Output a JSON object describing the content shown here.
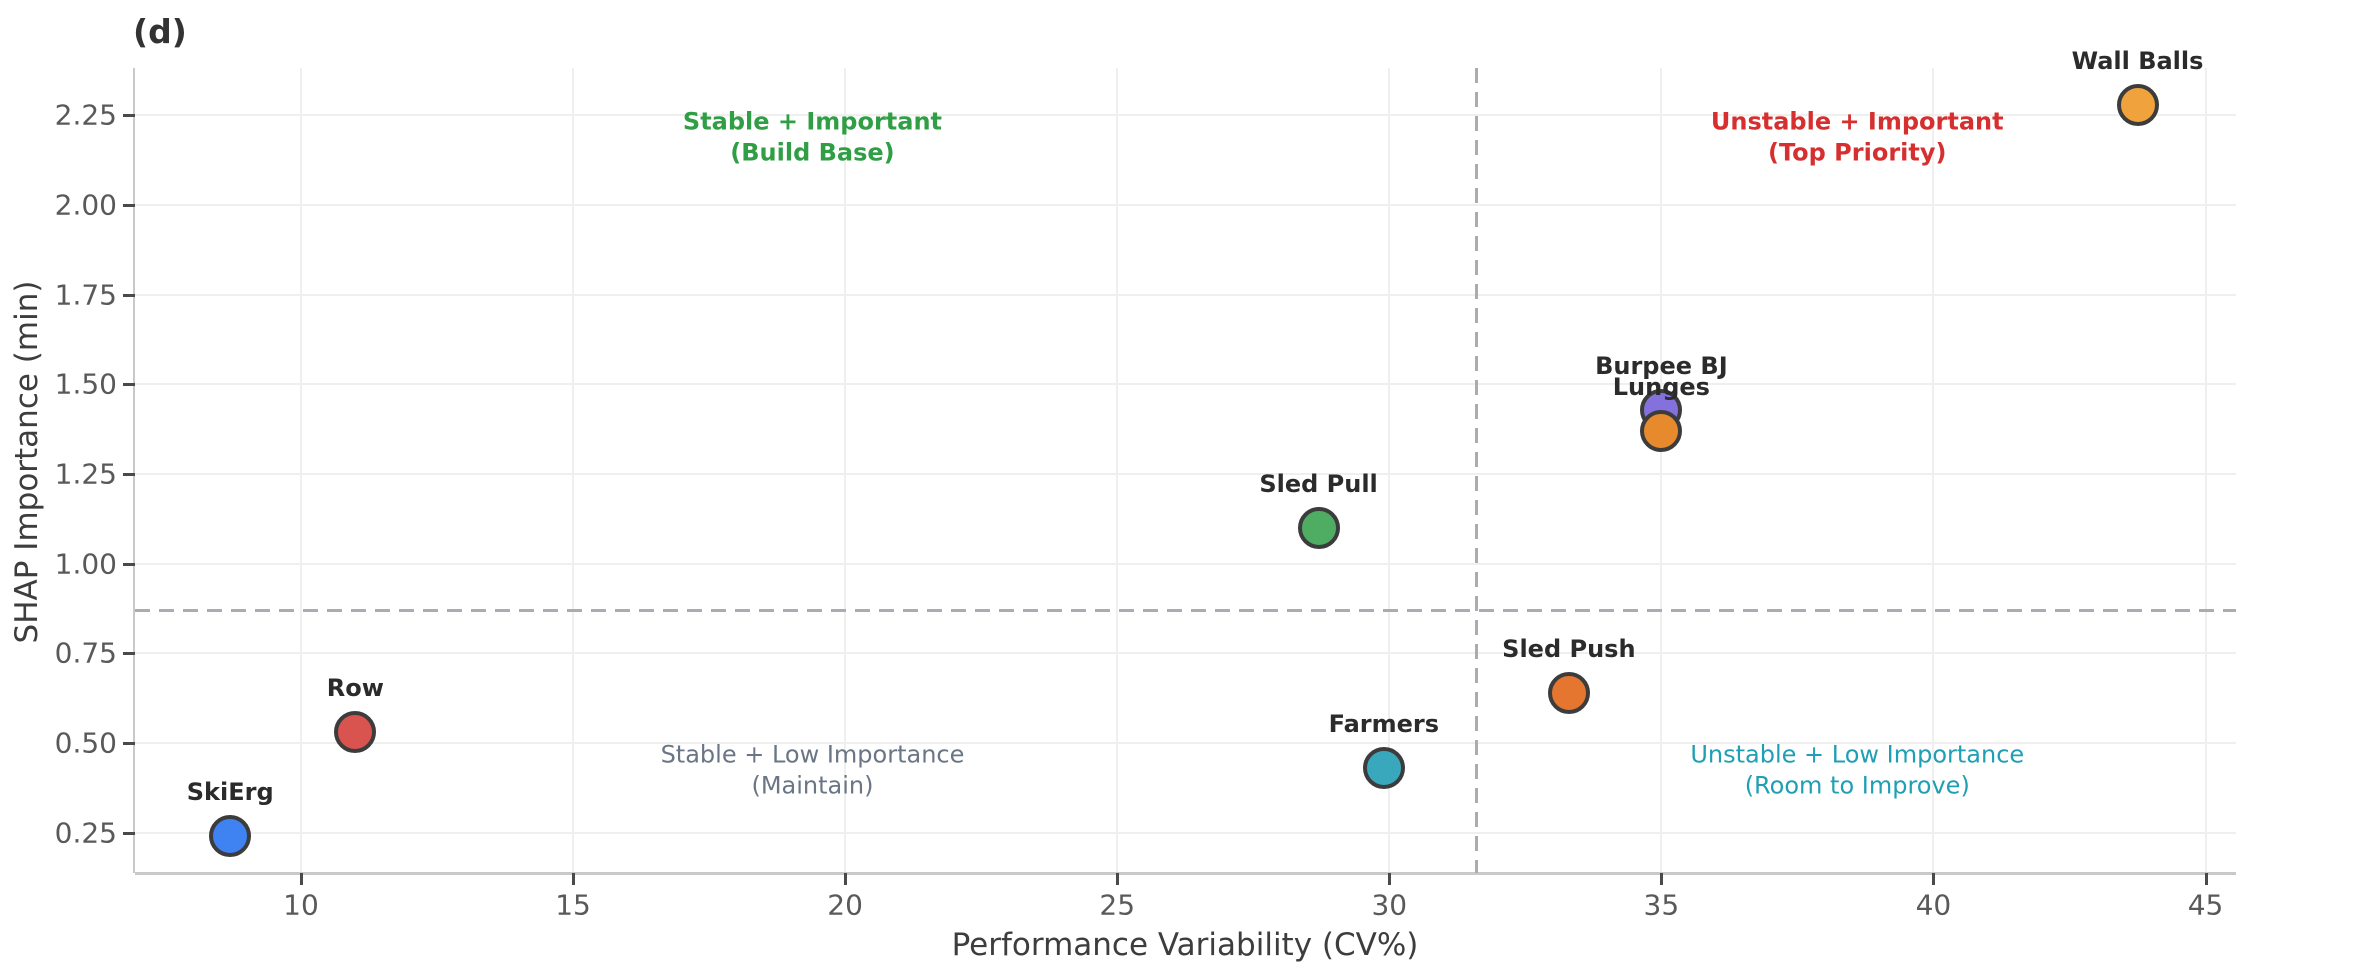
{
  "chart_data": {
    "type": "scatter",
    "title": "(d)",
    "xlabel": "Performance Variability (CV%)",
    "ylabel": "SHAP Importance (min)",
    "xlim": [
      6.95,
      45.56
    ],
    "ylim": [
      0.138,
      2.382
    ],
    "xticks": [
      10,
      15,
      20,
      25,
      30,
      35,
      40,
      45
    ],
    "yticks": [
      0.25,
      0.5,
      0.75,
      1.0,
      1.25,
      1.5,
      1.75,
      2.0,
      2.25
    ],
    "grid": true,
    "legend": "none",
    "marker_edge_color": "#3c3c3c",
    "threshold_lines": {
      "vertical_x": 31.6,
      "horizontal_y": 0.87,
      "style": "dashed",
      "color": "#a9adb2"
    },
    "points": [
      {
        "name": "SkiErg",
        "x": 8.7,
        "y": 0.24,
        "color": "#3f82f2"
      },
      {
        "name": "Row",
        "x": 11.0,
        "y": 0.53,
        "color": "#d9534f"
      },
      {
        "name": "Sled Pull",
        "x": 28.7,
        "y": 1.1,
        "color": "#4fad63"
      },
      {
        "name": "Farmers",
        "x": 29.9,
        "y": 0.43,
        "color": "#3aa8bc"
      },
      {
        "name": "Sled Push",
        "x": 33.3,
        "y": 0.64,
        "color": "#e4762f"
      },
      {
        "name": "Burpee BJ",
        "x": 35.0,
        "y": 1.43,
        "color": "#8471de"
      },
      {
        "name": "Lunges",
        "x": 35.0,
        "y": 1.37,
        "color": "#e78a2e"
      },
      {
        "name": "Wall Balls",
        "x": 43.75,
        "y": 2.28,
        "color": "#f0a23c"
      }
    ],
    "quadrant_labels": [
      {
        "id": "stable-important",
        "lines": [
          "Stable + Important",
          "(Build Base)"
        ],
        "color": "#2f9e44",
        "bold": true,
        "x": 19.4,
        "y": 2.19
      },
      {
        "id": "unstable-important",
        "lines": [
          "Unstable + Important",
          "(Top Priority)"
        ],
        "color": "#d62f2f",
        "bold": true,
        "x": 38.6,
        "y": 2.19
      },
      {
        "id": "stable-low",
        "lines": [
          "Stable + Low Importance",
          "(Maintain)"
        ],
        "color": "#6a7685",
        "bold": false,
        "x": 19.4,
        "y": 0.425
      },
      {
        "id": "unstable-low",
        "lines": [
          "Unstable + Low Importance",
          "(Room to Improve)"
        ],
        "color": "#1f9fb4",
        "bold": false,
        "x": 38.6,
        "y": 0.425
      }
    ]
  }
}
